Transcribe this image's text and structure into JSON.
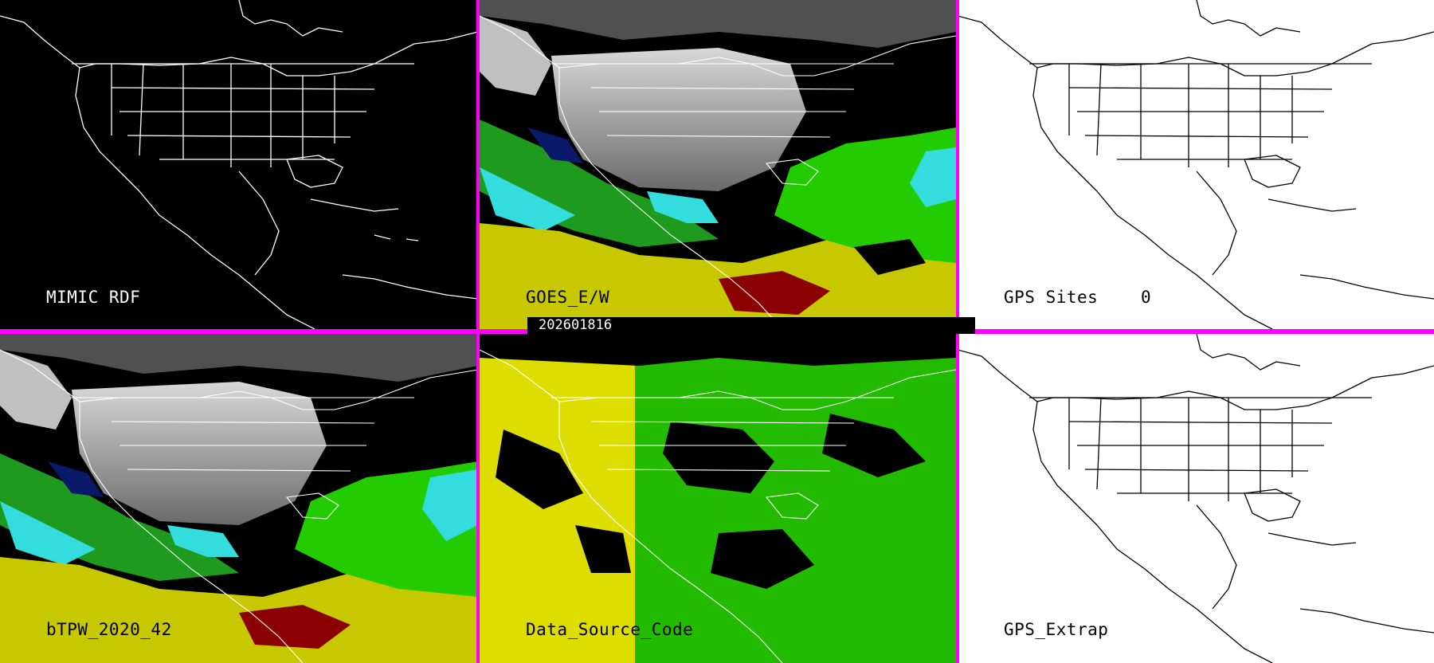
{
  "panels": {
    "mimic_rdf": {
      "label": "MIMIC RDF"
    },
    "goes_ew": {
      "label": "GOES_E/W"
    },
    "gps_sites": {
      "label": "GPS Sites",
      "count": "0"
    },
    "btpw": {
      "label": "bTPW_2020_42"
    },
    "data_source_code": {
      "label": "Data_Source_Code"
    },
    "gps_extrap": {
      "label": "GPS_Extrap"
    }
  },
  "timestamp": "202601816",
  "colors": {
    "divider": "#ff00ff",
    "background_dark": "#000000",
    "background_light": "#ffffff",
    "moisture_green": "#22cc00",
    "moisture_yellow": "#dddd00",
    "moisture_cyan": "#33dddd",
    "moisture_darkred": "#8b0000",
    "moisture_navy": "#0a1a6a",
    "cloud_gray": "#b8b8b8"
  },
  "icons": {
    "map_outline": "north-america-coastline-and-state-borders"
  }
}
